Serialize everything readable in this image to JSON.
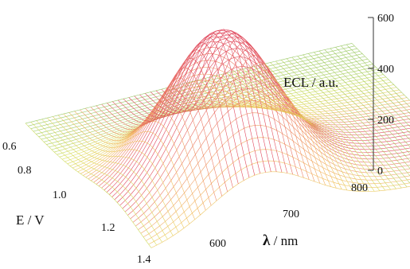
{
  "chart_data": {
    "type": "surface",
    "title": "",
    "x_axis": {
      "label": "E / V",
      "ticks": [
        "0.6",
        "0.8",
        "1.0",
        "1.2",
        "1.4"
      ],
      "range": [
        0.55,
        1.4
      ]
    },
    "y_axis": {
      "label_symbol": "λ",
      "label_unit": " / nm",
      "ticks": [
        "600",
        "700",
        "800"
      ],
      "range": [
        540,
        810
      ]
    },
    "z_axis": {
      "label": "ECL / a.u.",
      "ticks": [
        "0",
        "200",
        "400",
        "600"
      ],
      "range": [
        0,
        600
      ]
    },
    "peak": {
      "E": 1.15,
      "wavelength": 630,
      "ecl": 600
    },
    "colormap": [
      "#2fa37a",
      "#d8e060",
      "#f3c060",
      "#ee8a6a",
      "#e0485f"
    ]
  }
}
